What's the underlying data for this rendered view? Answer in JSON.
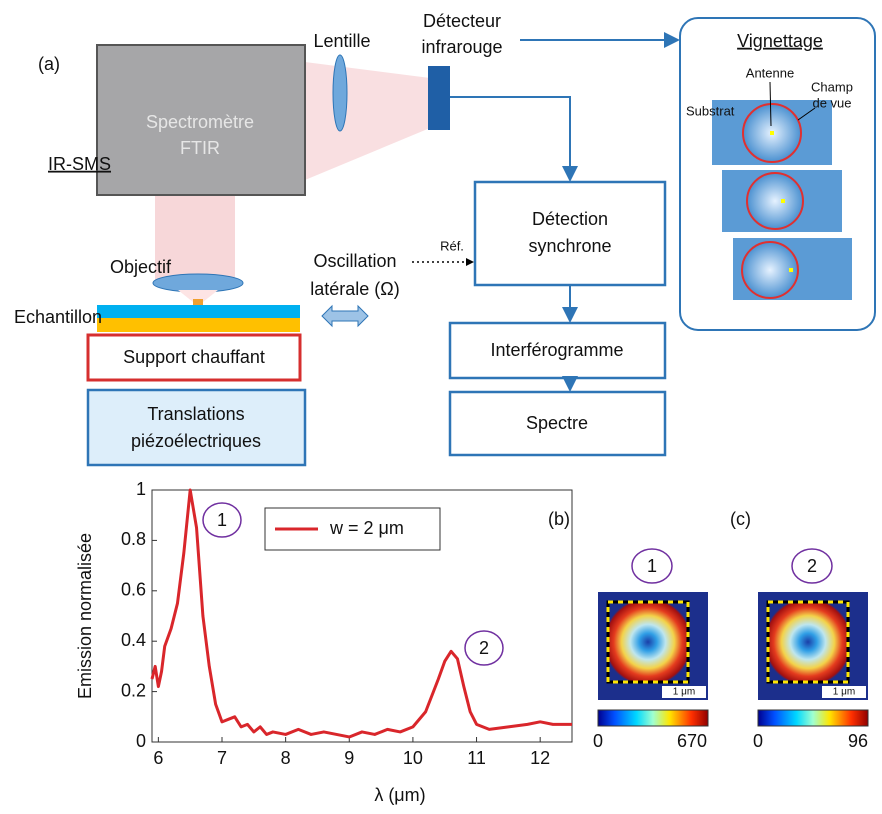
{
  "diagram": {
    "panel": "(a)",
    "spectrometer": [
      "Spectromètre",
      "FTIR"
    ],
    "ir_sms": "IR-SMS",
    "lens": "Lentille",
    "detector": [
      "Détecteur",
      "infrarouge"
    ],
    "vignetting": {
      "title": "Vignettage",
      "antenna": "Antenne",
      "field": [
        "Champ",
        "de vue"
      ],
      "substrate": "Substrat"
    },
    "objective": "Objectif",
    "sample": "Echantillon",
    "heater": "Support chauffant",
    "translations": [
      "Translations",
      "piézoélectriques"
    ],
    "oscillation": [
      "Oscillation",
      "latérale (Ω)"
    ],
    "ref": "Réf.",
    "lockin": [
      "Détection",
      "synchrone"
    ],
    "interferogram": "Interférogramme",
    "spectrum": "Spectre"
  },
  "chart_data": {
    "type": "line",
    "panel": "(b)",
    "x_label": "λ (μm)",
    "y_label": "Emission normalisée",
    "peak_labels": [
      "1",
      "2"
    ],
    "x": [
      5.9,
      5.95,
      6.0,
      6.05,
      6.1,
      6.2,
      6.3,
      6.4,
      6.5,
      6.6,
      6.7,
      6.8,
      6.9,
      7.0,
      7.1,
      7.2,
      7.3,
      7.4,
      7.5,
      7.6,
      7.7,
      7.8,
      8.0,
      8.2,
      8.4,
      8.6,
      8.8,
      9.0,
      9.2,
      9.4,
      9.6,
      9.8,
      10.0,
      10.2,
      10.4,
      10.5,
      10.6,
      10.7,
      10.8,
      10.9,
      11.0,
      11.2,
      11.5,
      11.8,
      12.0,
      12.2,
      12.5
    ],
    "series": [
      {
        "name": "w = 2 μm",
        "color": "#d9262b",
        "values": [
          0.25,
          0.3,
          0.22,
          0.28,
          0.38,
          0.45,
          0.55,
          0.75,
          1.0,
          0.85,
          0.5,
          0.3,
          0.15,
          0.08,
          0.09,
          0.1,
          0.06,
          0.07,
          0.04,
          0.06,
          0.03,
          0.04,
          0.03,
          0.05,
          0.03,
          0.04,
          0.03,
          0.02,
          0.04,
          0.03,
          0.05,
          0.04,
          0.06,
          0.12,
          0.25,
          0.32,
          0.36,
          0.33,
          0.22,
          0.12,
          0.07,
          0.05,
          0.06,
          0.07,
          0.08,
          0.07,
          0.07
        ]
      }
    ],
    "xlim": [
      5.9,
      12.5
    ],
    "ylim": [
      0,
      1
    ],
    "xticks": [
      6,
      7,
      8,
      9,
      10,
      11,
      12
    ],
    "yticks": [
      0,
      0.2,
      0.4,
      0.6,
      0.8,
      1
    ]
  },
  "maps": {
    "panel": "(c)",
    "items": [
      {
        "label": "1",
        "scale": "1 μm",
        "colorbar": [
          0,
          670
        ]
      },
      {
        "label": "2",
        "scale": "1 μm",
        "colorbar": [
          0,
          96
        ]
      }
    ]
  }
}
